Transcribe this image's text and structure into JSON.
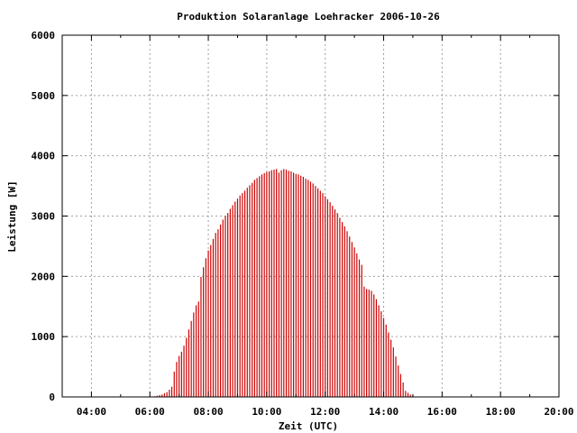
{
  "chart_data": {
    "type": "bar",
    "title": "Produktion Solaranlage Loehracker 2006-10-26",
    "xlabel": "Zeit (UTC)",
    "ylabel": "Leistung [W]",
    "xlim": [
      "03:00",
      "20:00"
    ],
    "ylim": [
      0,
      6000
    ],
    "xticks": [
      "04:00",
      "06:00",
      "08:00",
      "10:00",
      "12:00",
      "14:00",
      "16:00",
      "18:00",
      "20:00"
    ],
    "yticks": [
      "0",
      "1000",
      "2000",
      "3000",
      "4000",
      "5000",
      "6000"
    ],
    "grid": true,
    "bar_color": "#cc0000",
    "sample_interval_minutes": 5,
    "series": [
      {
        "x_start": "06:10",
        "values": [
          10,
          20,
          30,
          40,
          60,
          80,
          120,
          170,
          420,
          580,
          680,
          750,
          850,
          980,
          1120,
          1260,
          1400,
          1520,
          1580,
          1990,
          2150,
          2300,
          2430,
          2520,
          2620,
          2720,
          2780,
          2860,
          2940,
          3000,
          3050,
          3120,
          3180,
          3240,
          3290,
          3340,
          3380,
          3420,
          3470,
          3510,
          3550,
          3600,
          3630,
          3660,
          3690,
          3710,
          3730,
          3740,
          3760,
          3770,
          3780,
          3720,
          3760,
          3780,
          3770,
          3750,
          3740,
          3720,
          3700,
          3690,
          3670,
          3650,
          3620,
          3600,
          3570,
          3540,
          3500,
          3460,
          3420,
          3380,
          3330,
          3280,
          3230,
          3170,
          3110,
          3050,
          2970,
          2900,
          2830,
          2750,
          2660,
          2570,
          2480,
          2380,
          2280,
          2190,
          1830,
          1790,
          1780,
          1760,
          1700,
          1620,
          1520,
          1420,
          1310,
          1200,
          1070,
          950,
          820,
          670,
          520,
          380,
          240,
          100,
          70,
          40,
          20
        ]
      }
    ]
  }
}
